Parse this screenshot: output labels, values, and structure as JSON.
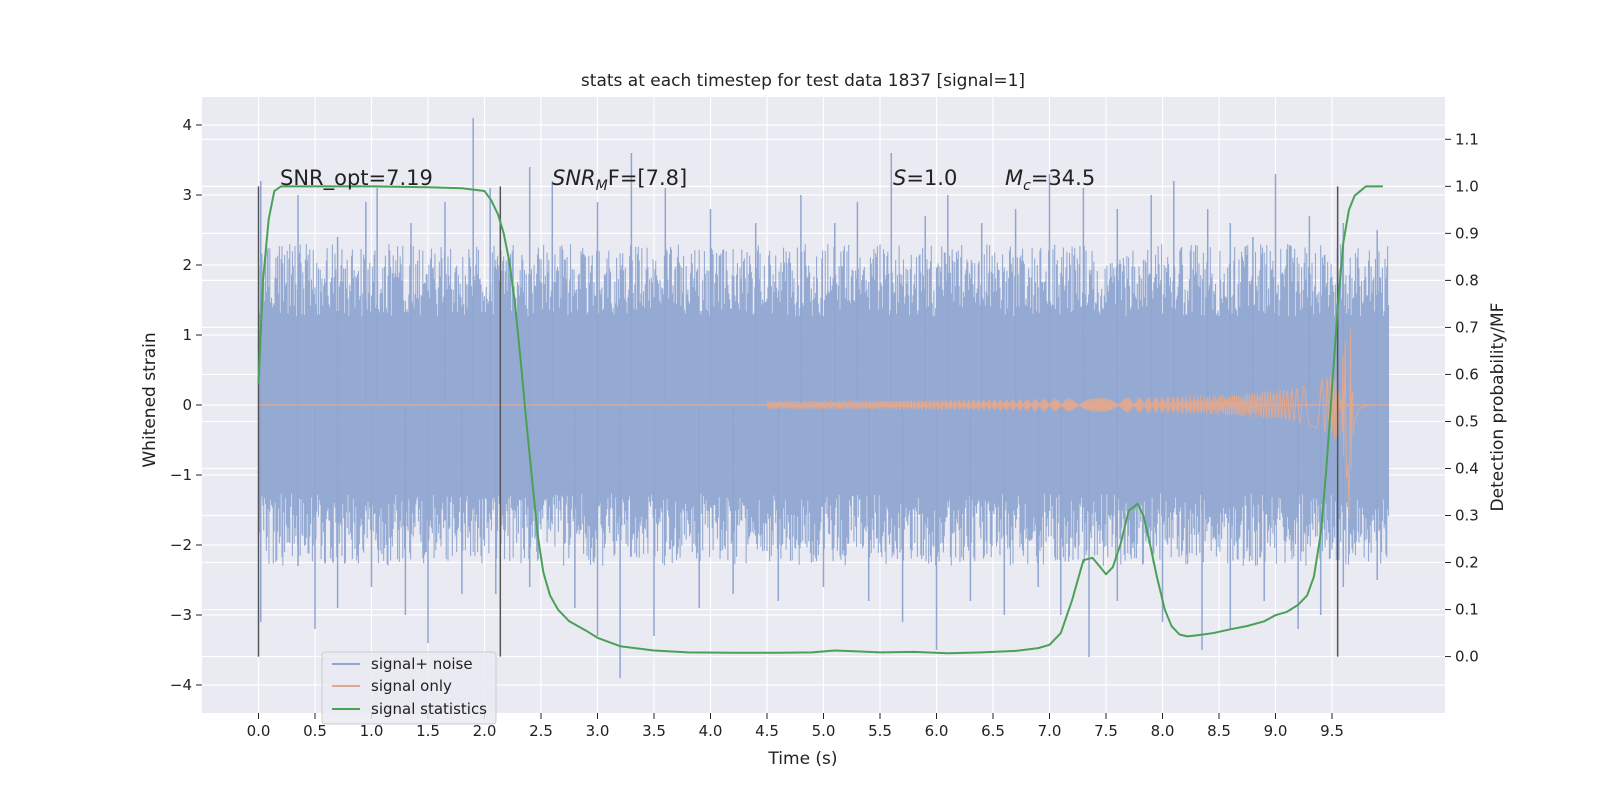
{
  "chart_data": {
    "type": "line",
    "title": "stats at each timestep for test data 1837 [signal=1]",
    "xlabel": "Time (s)",
    "ylabel_left": "Whitened strain",
    "ylabel_right": "Detection probability/MF",
    "xlim": [
      -0.5,
      10.5
    ],
    "ylim_left": [
      -4.4,
      4.4
    ],
    "ylim_right": [
      -0.12,
      1.19
    ],
    "xticks": [
      0.0,
      0.5,
      1.0,
      1.5,
      2.0,
      2.5,
      3.0,
      3.5,
      4.0,
      4.5,
      5.0,
      5.5,
      6.0,
      6.5,
      7.0,
      7.5,
      8.0,
      8.5,
      9.0,
      9.5
    ],
    "xtick_labels": [
      "0.0",
      "0.5",
      "1.0",
      "1.5",
      "2.0",
      "2.5",
      "3.0",
      "3.5",
      "4.0",
      "4.5",
      "5.0",
      "5.5",
      "6.0",
      "6.5",
      "7.0",
      "7.5",
      "8.0",
      "8.5",
      "9.0",
      "9.5"
    ],
    "yticks_left": [
      4,
      3,
      2,
      1,
      0,
      -1,
      -2,
      -3,
      -4
    ],
    "ytick_labels_left": [
      "4",
      "3",
      "2",
      "1",
      "0",
      "−1",
      "−2",
      "−3",
      "−4"
    ],
    "yticks_right": [
      1.1,
      1.0,
      0.9,
      0.8,
      0.7,
      0.6,
      0.5,
      0.4,
      0.3,
      0.2,
      0.1,
      0.0
    ],
    "ytick_labels_right": [
      "1.1",
      "1.0",
      "0.9",
      "0.8",
      "0.7",
      "0.6",
      "0.5",
      "0.4",
      "0.3",
      "0.2",
      "0.1",
      "0.0"
    ],
    "grid": true,
    "legend_position": "lower-left",
    "annotations": {
      "snr_opt": "SNR_opt=7.19",
      "snr_mf_main": "SNR",
      "snr_mf_sub": "M",
      "snr_mf_tail": "F=[7.8]",
      "s_main": "S",
      "s_tail": "=1.0",
      "mc_main": "M",
      "mc_sub": "c",
      "mc_tail": "=34.5"
    },
    "vlines": [
      0.0,
      2.14,
      9.55
    ],
    "series": [
      {
        "name": "signal+ noise",
        "color": "#8fa6d1",
        "axis": "left",
        "x_range": [
          0.0,
          10.0
        ],
        "envelope_upper": 2.3,
        "envelope_lower": -2.3,
        "peaks": [
          [
            0.02,
            3.2
          ],
          [
            0.35,
            3.0
          ],
          [
            0.7,
            2.4
          ],
          [
            0.95,
            2.9
          ],
          [
            1.05,
            3.1
          ],
          [
            1.35,
            2.6
          ],
          [
            1.65,
            2.9
          ],
          [
            1.9,
            4.1
          ],
          [
            2.05,
            3.1
          ],
          [
            2.4,
            3.4
          ],
          [
            2.6,
            3.2
          ],
          [
            3.0,
            2.9
          ],
          [
            3.3,
            3.6
          ],
          [
            3.6,
            3.1
          ],
          [
            4.0,
            2.8
          ],
          [
            4.4,
            2.6
          ],
          [
            4.8,
            3.0
          ],
          [
            5.1,
            2.6
          ],
          [
            5.3,
            2.9
          ],
          [
            5.6,
            3.6
          ],
          [
            5.9,
            2.7
          ],
          [
            6.1,
            3.0
          ],
          [
            6.4,
            2.6
          ],
          [
            6.7,
            2.8
          ],
          [
            7.0,
            3.3
          ],
          [
            7.3,
            3.1
          ],
          [
            7.6,
            2.8
          ],
          [
            7.9,
            3.0
          ],
          [
            8.1,
            3.2
          ],
          [
            8.4,
            2.8
          ],
          [
            8.6,
            2.6
          ],
          [
            8.8,
            2.4
          ],
          [
            9.0,
            3.3
          ],
          [
            9.3,
            2.7
          ],
          [
            9.6,
            2.6
          ],
          [
            9.9,
            2.5
          ]
        ],
        "troughs": [
          [
            0.02,
            -3.1
          ],
          [
            0.35,
            -2.3
          ],
          [
            0.5,
            -3.2
          ],
          [
            0.7,
            -2.9
          ],
          [
            1.0,
            -2.6
          ],
          [
            1.3,
            -3.0
          ],
          [
            1.5,
            -3.4
          ],
          [
            1.8,
            -2.7
          ],
          [
            2.1,
            -2.7
          ],
          [
            2.4,
            -2.6
          ],
          [
            2.8,
            -2.9
          ],
          [
            3.0,
            -3.3
          ],
          [
            3.2,
            -3.9
          ],
          [
            3.5,
            -3.3
          ],
          [
            3.9,
            -2.9
          ],
          [
            4.2,
            -2.7
          ],
          [
            4.6,
            -2.8
          ],
          [
            5.0,
            -2.6
          ],
          [
            5.4,
            -2.8
          ],
          [
            5.7,
            -3.1
          ],
          [
            6.0,
            -3.5
          ],
          [
            6.3,
            -2.8
          ],
          [
            6.6,
            -3.0
          ],
          [
            6.9,
            -2.6
          ],
          [
            7.1,
            -3.0
          ],
          [
            7.35,
            -3.6
          ],
          [
            7.6,
            -2.8
          ],
          [
            8.0,
            -3.1
          ],
          [
            8.35,
            -3.5
          ],
          [
            8.6,
            -3.2
          ],
          [
            8.9,
            -2.8
          ],
          [
            9.2,
            -3.2
          ],
          [
            9.4,
            -3.0
          ],
          [
            9.6,
            -2.6
          ],
          [
            9.9,
            -2.5
          ]
        ]
      },
      {
        "name": "signal only",
        "color": "#e0a890",
        "axis": "left",
        "chirp_start": 4.5,
        "chirp_peak_time": 9.65,
        "chirp_peak_amp": 1.7,
        "chirp_end": 10.0
      },
      {
        "name": "signal statistics",
        "color": "#4aa156",
        "axis": "right",
        "x": [
          0.0,
          0.04,
          0.09,
          0.14,
          0.2,
          0.3,
          0.5,
          1.0,
          1.5,
          1.8,
          2.0,
          2.06,
          2.12,
          2.17,
          2.22,
          2.27,
          2.32,
          2.37,
          2.42,
          2.47,
          2.52,
          2.58,
          2.65,
          2.75,
          2.9,
          3.0,
          3.2,
          3.5,
          3.8,
          4.2,
          4.6,
          4.9,
          5.1,
          5.3,
          5.5,
          5.8,
          6.1,
          6.4,
          6.7,
          6.9,
          7.0,
          7.1,
          7.2,
          7.3,
          7.38,
          7.45,
          7.5,
          7.56,
          7.63,
          7.7,
          7.78,
          7.83,
          7.88,
          7.95,
          8.02,
          8.08,
          8.15,
          8.22,
          8.3,
          8.45,
          8.6,
          8.75,
          8.9,
          9.0,
          9.1,
          9.2,
          9.28,
          9.34,
          9.4,
          9.45,
          9.5,
          9.55,
          9.6,
          9.65,
          9.7,
          9.75,
          9.8,
          9.85,
          9.9,
          9.95
        ],
        "y": [
          0.58,
          0.8,
          0.93,
          0.99,
          1.0,
          1.0,
          1.0,
          1.0,
          0.998,
          0.996,
          0.99,
          0.97,
          0.94,
          0.9,
          0.84,
          0.75,
          0.63,
          0.5,
          0.38,
          0.26,
          0.18,
          0.13,
          0.1,
          0.075,
          0.055,
          0.04,
          0.022,
          0.013,
          0.009,
          0.008,
          0.008,
          0.009,
          0.013,
          0.011,
          0.009,
          0.01,
          0.007,
          0.009,
          0.012,
          0.018,
          0.025,
          0.05,
          0.12,
          0.205,
          0.21,
          0.19,
          0.175,
          0.19,
          0.24,
          0.31,
          0.325,
          0.3,
          0.25,
          0.17,
          0.1,
          0.065,
          0.047,
          0.043,
          0.045,
          0.05,
          0.058,
          0.065,
          0.075,
          0.088,
          0.095,
          0.11,
          0.13,
          0.17,
          0.26,
          0.4,
          0.57,
          0.74,
          0.88,
          0.95,
          0.98,
          0.99,
          1.0,
          1.0,
          1.0,
          1.0
        ]
      }
    ]
  }
}
